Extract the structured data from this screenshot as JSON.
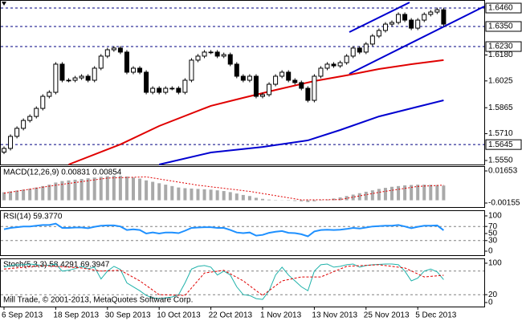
{
  "chart_data": [
    {
      "type": "candlestick",
      "open": [
        1.56,
        1.5622,
        1.5694,
        1.5742,
        1.5789,
        1.5813,
        1.5861,
        1.5933,
        1.5957,
        1.6125,
        1.6029,
        1.6029,
        1.6043,
        1.6053,
        1.6029,
        1.6101,
        1.6173,
        1.6211,
        1.6221,
        1.6197,
        1.6077,
        1.6101,
        1.6077,
        1.5957,
        1.5981,
        1.5957,
        1.5981,
        1.5981,
        1.5957,
        1.6029,
        1.6149,
        1.6173,
        1.6197,
        1.6197,
        1.6173,
        1.6182,
        1.6125,
        1.6053,
        1.6029,
        1.6053,
        1.5933,
        1.5943,
        1.6005,
        1.6053,
        1.6077,
        1.6029,
        1.6015,
        1.5981,
        1.5909,
        1.6053,
        1.6101,
        1.6125,
        1.6115,
        1.6134,
        1.6173,
        1.6221,
        1.6197,
        1.6245,
        1.6293,
        1.6326,
        1.6364,
        1.6374,
        1.6422,
        1.6388,
        1.634,
        1.6388,
        1.6422,
        1.6436,
        1.645
      ],
      "high": [
        1.5634,
        1.5706,
        1.5754,
        1.5801,
        1.5825,
        1.5873,
        1.5945,
        1.5969,
        1.6137,
        1.6137,
        1.6041,
        1.6055,
        1.6065,
        1.6065,
        1.6113,
        1.6185,
        1.6223,
        1.6233,
        1.6233,
        1.6209,
        1.6113,
        1.6113,
        1.6089,
        1.5993,
        1.5993,
        1.5993,
        1.5993,
        1.5993,
        1.6041,
        1.6161,
        1.6185,
        1.6209,
        1.6209,
        1.6209,
        1.6194,
        1.6194,
        1.6137,
        1.6065,
        1.6065,
        1.6065,
        1.5955,
        1.6017,
        1.6065,
        1.6089,
        1.6089,
        1.6041,
        1.6027,
        1.5993,
        1.6065,
        1.6113,
        1.6137,
        1.6137,
        1.6146,
        1.6185,
        1.6233,
        1.6233,
        1.6257,
        1.6305,
        1.6338,
        1.6376,
        1.6386,
        1.6434,
        1.6434,
        1.64,
        1.64,
        1.6434,
        1.6448,
        1.6462,
        1.6462
      ],
      "low": [
        1.5588,
        1.561,
        1.5682,
        1.573,
        1.5777,
        1.5801,
        1.5849,
        1.5921,
        1.5945,
        1.6017,
        1.6017,
        1.6017,
        1.6031,
        1.6017,
        1.6017,
        1.6089,
        1.6161,
        1.6199,
        1.6185,
        1.6065,
        1.6065,
        1.6065,
        1.5945,
        1.5945,
        1.5945,
        1.5945,
        1.5969,
        1.5945,
        1.5945,
        1.6017,
        1.6137,
        1.6161,
        1.6185,
        1.6161,
        1.6161,
        1.6113,
        1.6041,
        1.6017,
        1.6017,
        1.5921,
        1.5921,
        1.5931,
        1.5993,
        1.6041,
        1.6017,
        1.6003,
        1.5969,
        1.5897,
        1.5897,
        1.6041,
        1.6089,
        1.6103,
        1.6103,
        1.6122,
        1.6161,
        1.6185,
        1.6185,
        1.6233,
        1.6281,
        1.6314,
        1.6352,
        1.6362,
        1.6376,
        1.6328,
        1.6328,
        1.6376,
        1.641,
        1.6424,
        1.6352
      ],
      "close": [
        1.5622,
        1.5694,
        1.5742,
        1.5789,
        1.5813,
        1.5861,
        1.5933,
        1.5957,
        1.6125,
        1.6029,
        1.6029,
        1.6043,
        1.6053,
        1.6029,
        1.6101,
        1.6173,
        1.6211,
        1.6221,
        1.6197,
        1.6077,
        1.6101,
        1.6077,
        1.5957,
        1.5981,
        1.5957,
        1.5981,
        1.5981,
        1.5957,
        1.6029,
        1.6149,
        1.6173,
        1.6197,
        1.6197,
        1.6173,
        1.6182,
        1.6125,
        1.6053,
        1.6029,
        1.6053,
        1.5933,
        1.5943,
        1.6005,
        1.6053,
        1.6077,
        1.6029,
        1.6015,
        1.5981,
        1.5909,
        1.6053,
        1.6101,
        1.6125,
        1.6115,
        1.6134,
        1.6173,
        1.6221,
        1.6197,
        1.6245,
        1.6293,
        1.6326,
        1.6364,
        1.6374,
        1.6422,
        1.6388,
        1.634,
        1.6388,
        1.6422,
        1.6436,
        1.645,
        1.6364
      ],
      "lines": [
        {
          "color": "#e00000",
          "x": [
            10,
            18,
            24,
            32,
            37,
            42,
            48,
            53,
            58,
            63,
            68
          ],
          "values": [
            1.5526,
            1.5646,
            1.5756,
            1.5876,
            1.5924,
            1.5971,
            1.6024,
            1.6058,
            1.6096,
            1.6125,
            1.6149
          ]
        },
        {
          "color": "#0000d0",
          "x": [
            24,
            32,
            40,
            47,
            52,
            58,
            64,
            68
          ],
          "values": [
            1.5526,
            1.5598,
            1.5631,
            1.567,
            1.5732,
            1.5813,
            1.5871,
            1.5909
          ]
        }
      ],
      "ylim": [
        1.5526,
        1.6508
      ],
      "yticks": [
        {
          "value": 1.618,
          "label": "1.6180"
        },
        {
          "value": 1.6025,
          "label": "1.6025"
        },
        {
          "value": 1.5865,
          "label": "1.5865"
        },
        {
          "value": 1.571,
          "label": "1.5710"
        },
        {
          "value": 1.555,
          "label": "1.5550"
        }
      ],
      "levels": [
        {
          "value": 1.646,
          "label": "1.6460"
        },
        {
          "value": 1.635,
          "label": "1.6350"
        },
        {
          "value": 1.623,
          "label": "1.6230"
        },
        {
          "value": 1.5645,
          "label": "1.5645"
        }
      ],
      "level_color": "#000080",
      "xticks": [
        {
          "value": 0,
          "label": "6 Sep 2013"
        },
        {
          "value": 8,
          "label": "18 Sep 2013"
        },
        {
          "value": 16,
          "label": "30 Sep 2013"
        },
        {
          "value": 24,
          "label": "10 Oct 2013"
        },
        {
          "value": 32,
          "label": "22 Oct 2013"
        },
        {
          "value": 40,
          "label": "1 Nov 2013"
        },
        {
          "value": 48,
          "label": "13 Nov 2013"
        },
        {
          "value": 56,
          "label": "25 Nov 2013"
        },
        {
          "value": 64,
          "label": "5 Dec 2013"
        }
      ]
    },
    {
      "type": "histogram",
      "title": "MACD(12,26,9) 0.00831 0.00854",
      "color": "#a9a9a9",
      "values": [
        0.0045,
        0.005,
        0.0055,
        0.006,
        0.0065,
        0.0072,
        0.008,
        0.0088,
        0.01,
        0.0108,
        0.0112,
        0.0116,
        0.012,
        0.0124,
        0.0128,
        0.0132,
        0.0136,
        0.0138,
        0.0138,
        0.0134,
        0.0128,
        0.0122,
        0.0112,
        0.0104,
        0.0096,
        0.0088,
        0.008,
        0.0072,
        0.0068,
        0.0066,
        0.0064,
        0.0062,
        0.006,
        0.0056,
        0.0052,
        0.0046,
        0.0038,
        0.003,
        0.0024,
        0.0014,
        0.0008,
        0.0004,
        0.0002,
        0.0001,
        -0.0002,
        -0.0004,
        -0.0006,
        -0.001,
        -0.0006,
        -0.0002,
        0.0004,
        0.001,
        0.0016,
        0.0024,
        0.0032,
        0.004,
        0.0048,
        0.0056,
        0.0064,
        0.007,
        0.0076,
        0.008,
        0.0084,
        0.0086,
        0.0088,
        0.0088,
        0.0087,
        0.0086,
        0.0083
      ],
      "signal": {
        "color": "#e00000",
        "x": [
          0,
          8,
          16,
          22,
          30,
          38,
          46,
          52,
          58,
          64,
          68
        ],
        "values": [
          0.004,
          0.0085,
          0.0125,
          0.0132,
          0.0085,
          0.005,
          0.0002,
          0.0004,
          0.0045,
          0.0078,
          0.00854
        ]
      },
      "ylim": [
        -0.00381,
        0.01924
      ],
      "yticks": [
        0.01653,
        -0.00155
      ]
    },
    {
      "type": "line",
      "title": "RSI(14) 59.3770",
      "series": [
        {
          "color": "#1e90ff",
          "width": 2,
          "values": [
            62,
            66,
            68,
            70,
            70,
            72,
            74,
            74,
            78,
            66,
            66,
            67,
            67,
            65,
            69,
            72,
            73,
            73,
            70,
            60,
            62,
            60,
            50,
            53,
            50,
            53,
            53,
            51,
            58,
            66,
            67,
            68,
            68,
            66,
            66,
            60,
            53,
            51,
            53,
            44,
            46,
            52,
            55,
            57,
            52,
            51,
            48,
            42,
            56,
            60,
            61,
            60,
            61,
            63,
            66,
            64,
            67,
            70,
            71,
            72,
            72,
            74,
            70,
            65,
            69,
            72,
            72,
            73,
            59.377
          ]
        }
      ],
      "ylim": [
        -11.4,
        115.9
      ],
      "yticks": [
        100,
        70,
        50,
        30,
        0
      ],
      "levels": [
        70,
        30
      ]
    },
    {
      "type": "line",
      "title": "Stoch(5,3,3) 58.4291 69.3947",
      "series": [
        {
          "color": "#20b2aa",
          "width": 1,
          "values": [
            90,
            94,
            96,
            96,
            98,
            96,
            94,
            95,
            98,
            80,
            82,
            86,
            92,
            86,
            90,
            60,
            80,
            92,
            84,
            50,
            40,
            30,
            18,
            12,
            10,
            12,
            14,
            20,
            50,
            85,
            92,
            94,
            90,
            70,
            80,
            70,
            40,
            20,
            18,
            10,
            8,
            30,
            70,
            90,
            70,
            55,
            40,
            30,
            80,
            96,
            98,
            90,
            92,
            96,
            98,
            90,
            94,
            96,
            97,
            98,
            98,
            96,
            80,
            55,
            62,
            80,
            85,
            78,
            58.4291
          ]
        },
        {
          "color": "#e00000",
          "width": 1,
          "dash": "3,2",
          "x": [
            0,
            6,
            12,
            15,
            18,
            21,
            24,
            28,
            31,
            34,
            37,
            40,
            43,
            46,
            49,
            53,
            58,
            62,
            65,
            68
          ],
          "values": [
            85,
            94,
            88,
            80,
            82,
            55,
            20,
            18,
            75,
            82,
            55,
            18,
            55,
            65,
            65,
            92,
            96,
            88,
            65,
            69.3947
          ]
        }
      ],
      "ylim": [
        -10.2,
        112.2
      ],
      "yticks": [
        100,
        20,
        0
      ],
      "levels": [
        80,
        20
      ]
    }
  ],
  "footer": "Mill Trade, © 2001-2013, MetaQuotes Software Corp."
}
